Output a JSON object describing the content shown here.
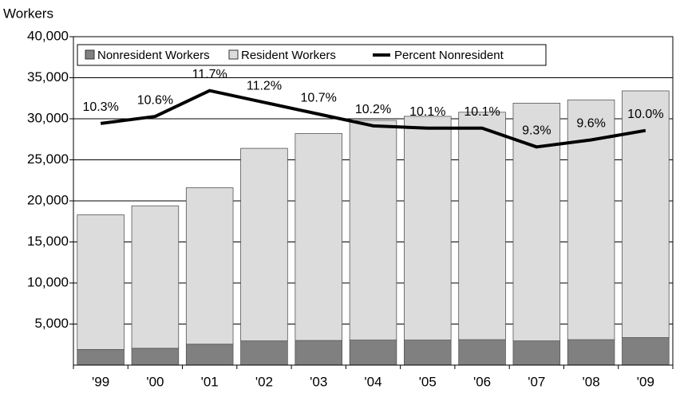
{
  "chart_data": {
    "type": "bar",
    "stacked": true,
    "y_label": "Workers",
    "categories": [
      "'99",
      "'00",
      "'01",
      "'02",
      "'03",
      "'04",
      "'05",
      "'06",
      "'07",
      "'08",
      "'09"
    ],
    "series": [
      {
        "name": "Nonresident Workers",
        "color": "#808080",
        "values": [
          1900,
          2050,
          2550,
          2950,
          3000,
          3050,
          3050,
          3100,
          2950,
          3100,
          3350
        ]
      },
      {
        "name": "Resident Workers",
        "color": "#dcdcdc",
        "values": [
          16400,
          17350,
          19050,
          23450,
          25200,
          26750,
          27250,
          27700,
          28950,
          29200,
          30050
        ]
      },
      {
        "name": "Percent Nonresident",
        "type": "line",
        "axis": "y2",
        "color": "#000000",
        "values": [
          10.3,
          10.6,
          11.7,
          11.2,
          10.7,
          10.2,
          10.1,
          10.1,
          9.3,
          9.6,
          10.0
        ],
        "value_labels": [
          "10.3%",
          "10.6%",
          "11.7%",
          "11.2%",
          "10.7%",
          "10.2%",
          "10.1%",
          "10.1%",
          "9.3%",
          "9.6%",
          "10.0%"
        ]
      }
    ],
    "ylim": [
      0,
      40000
    ],
    "yticks": [
      {
        "value": 5000,
        "label": "5,000"
      },
      {
        "value": 10000,
        "label": "10,000"
      },
      {
        "value": 15000,
        "label": "15,000"
      },
      {
        "value": 20000,
        "label": "20,000"
      },
      {
        "value": 25000,
        "label": "25,000"
      },
      {
        "value": 30000,
        "label": "30,000"
      },
      {
        "value": 35000,
        "label": "35,000"
      },
      {
        "value": 40000,
        "label": "40,000"
      }
    ],
    "y2lim": [
      0,
      14
    ],
    "grid": true,
    "legend": "upper left"
  }
}
